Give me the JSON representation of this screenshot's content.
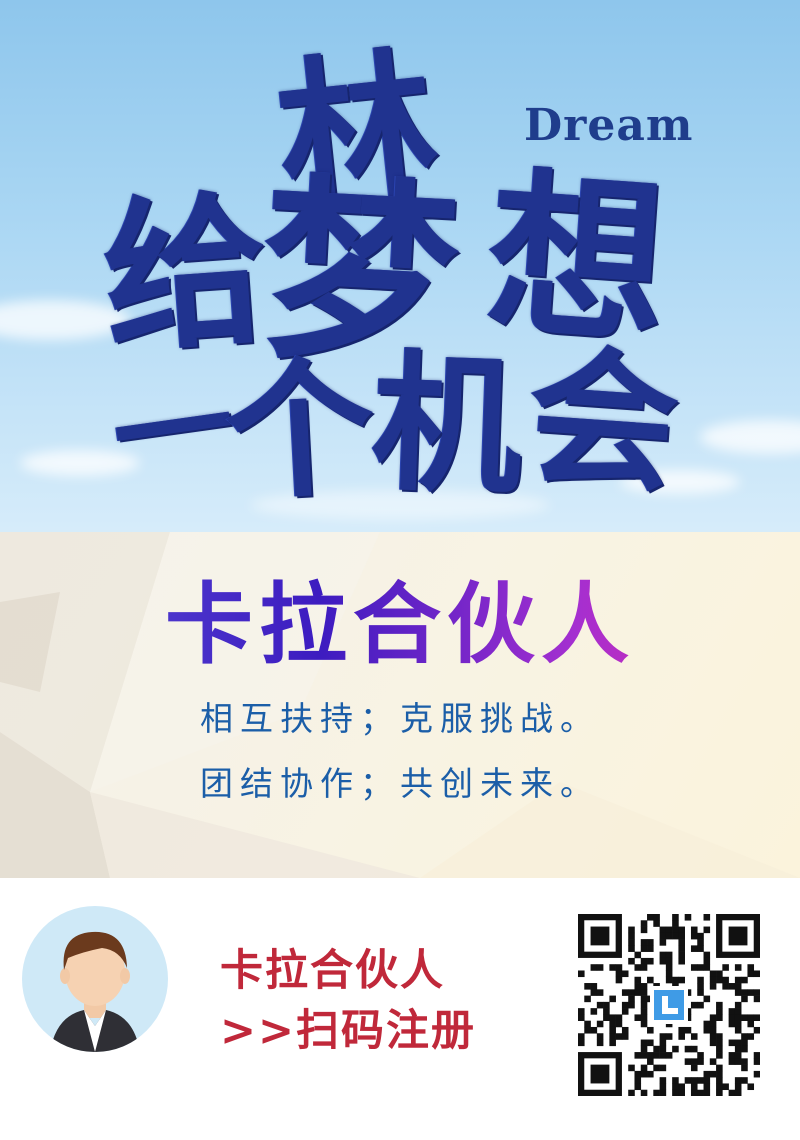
{
  "hero": {
    "brush_chars": [
      "林",
      "给",
      "梦",
      "想",
      "一",
      "个",
      "机",
      "会"
    ],
    "dream_word": "Dream"
  },
  "band": {
    "title": "卡拉合伙人",
    "slogans": [
      "相互扶持；克服挑战。",
      "团结协作；共创未来。"
    ]
  },
  "footer": {
    "name": "卡拉合伙人",
    "cta": ">>扫码注册",
    "avatar_icon": "person-avatar-icon",
    "qr_icon": "qr-code-icon"
  },
  "colors": {
    "brush_blue": "#20338f",
    "slogan_blue": "#1b5ea8",
    "footer_red": "#c0283a",
    "title_gradient": [
      "#5a4ed8",
      "#3d1cc0",
      "#a52fd0",
      "#f0289c"
    ]
  }
}
